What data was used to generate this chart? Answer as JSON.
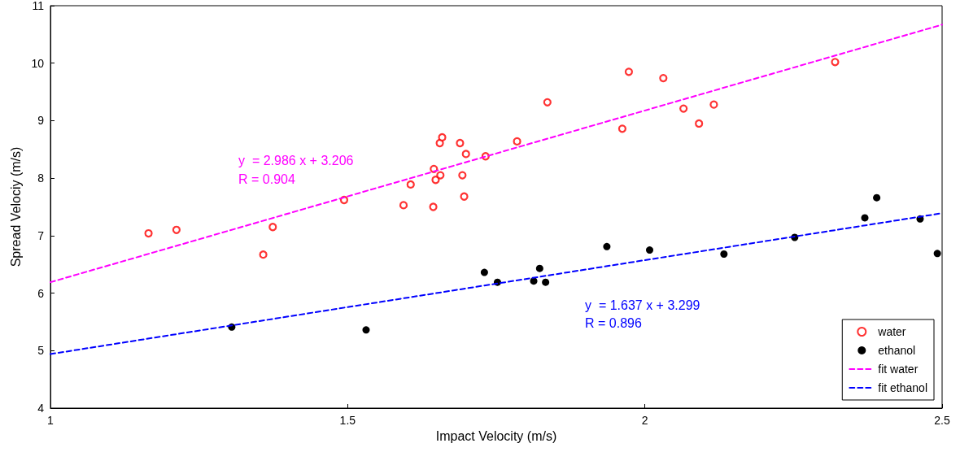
{
  "chart_data": {
    "type": "scatter",
    "xlabel": "Impact Velocity (m/s)",
    "ylabel": "Spread Velociy (m/s)",
    "xlim": [
      1,
      2.5
    ],
    "xticks": [
      1,
      1.5,
      2,
      2.5
    ],
    "ylim": [
      4,
      11
    ],
    "yticks": [
      4,
      5,
      6,
      7,
      8,
      9,
      10,
      11
    ],
    "grid": false,
    "legend": "bottom right",
    "series": [
      {
        "name": "water",
        "marker": "circle",
        "color": "#ff0000",
        "x": [
          1.165,
          1.212,
          1.358,
          1.374,
          1.494,
          1.594,
          1.606,
          1.644,
          1.645,
          1.648,
          1.656,
          1.655,
          1.659,
          1.689,
          1.693,
          1.696,
          1.699,
          1.732,
          1.785,
          1.836,
          1.962,
          1.973,
          2.031,
          2.065,
          2.091,
          2.116,
          2.32
        ],
        "values": [
          7.04,
          7.1,
          6.67,
          7.15,
          7.62,
          7.53,
          7.89,
          7.5,
          8.16,
          7.97,
          8.05,
          8.61,
          8.71,
          8.61,
          8.05,
          7.68,
          8.42,
          8.38,
          8.64,
          9.32,
          8.86,
          9.85,
          9.74,
          9.21,
          8.95,
          9.28,
          10.02
        ]
      },
      {
        "name": "ethanol",
        "marker": "circle",
        "color": "#000000",
        "x": [
          1.305,
          1.531,
          1.73,
          1.752,
          1.813,
          1.823,
          1.833,
          1.936,
          2.008,
          2.133,
          2.252,
          2.37,
          2.39,
          2.463,
          2.492
        ],
        "values": [
          5.41,
          5.36,
          6.36,
          6.19,
          6.21,
          6.43,
          6.19,
          6.81,
          6.75,
          6.68,
          6.97,
          7.31,
          7.66,
          7.29,
          6.69
        ]
      },
      {
        "name": "fit water",
        "type": "line",
        "marker": "none",
        "line_style": "dashed",
        "color": "#ff00ff",
        "x": [
          1,
          2.5
        ],
        "values": [
          6.19,
          10.67
        ]
      },
      {
        "name": "fit ethanol",
        "type": "line",
        "marker": "none",
        "line_style": "dashed",
        "color": "#0000ff",
        "x": [
          1,
          2.5
        ],
        "values": [
          4.94,
          7.39
        ]
      }
    ],
    "annotations": [
      "y  = 2.986 x + 3.206",
      "R = 0.904",
      "y  = 1.637 x + 3.299",
      "R = 0.896"
    ]
  }
}
